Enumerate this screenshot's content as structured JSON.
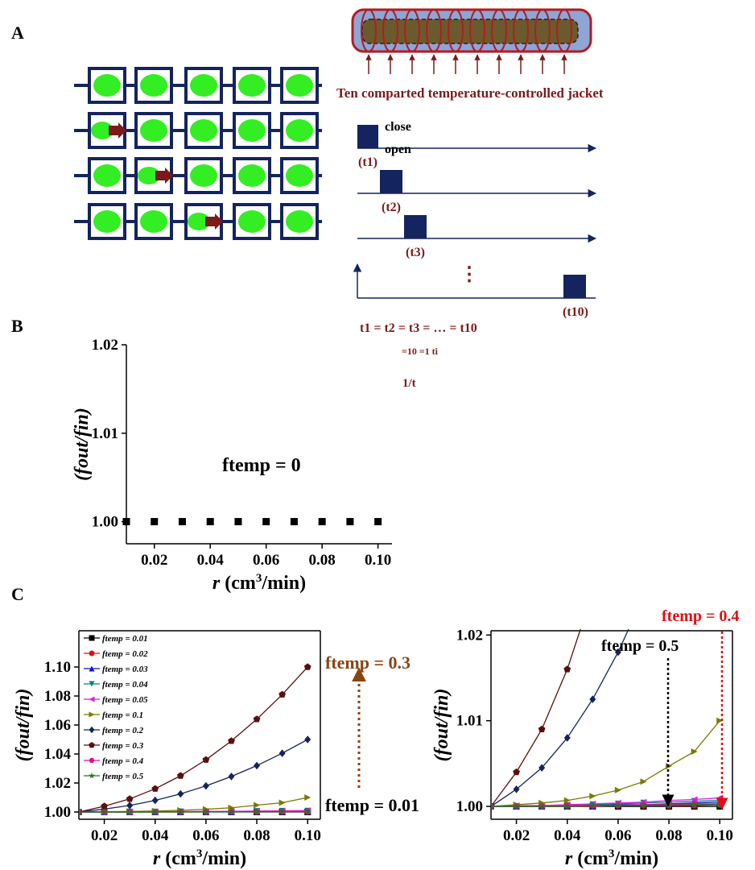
{
  "panels": {
    "a": "A",
    "b": "B",
    "c": "C"
  },
  "schematic": {
    "jacket_caption": "Ten comparted temperature-controlled jacket",
    "close_label": "close",
    "open_label": "open",
    "pulse_labels": [
      "(t1)",
      "(t2)",
      "(t3)",
      "(t10)"
    ],
    "equation": "t1 = t2 = t3 = … = t10",
    "sum_formula": "=10 =1 ti",
    "inverse": "1/t",
    "dots": "⋮"
  },
  "colors": {
    "green": "#33ee22",
    "navy": "#13245e",
    "dark_red": "#7a1a1a",
    "brown": "#8b4513",
    "red": "#e01010"
  },
  "chart_data": [
    {
      "id": "B",
      "type": "scatter",
      "x": [
        0.01,
        0.02,
        0.03,
        0.04,
        0.05,
        0.06,
        0.07,
        0.08,
        0.09,
        0.1
      ],
      "y": [
        1.0,
        1.0,
        1.0,
        1.0,
        1.0,
        1.0,
        1.0,
        1.0,
        1.0,
        1.0
      ],
      "xlim": [
        0.01,
        0.105
      ],
      "ylim": [
        0.9975,
        1.02
      ],
      "xticks": [
        "0.02",
        "0.04",
        "0.06",
        "0.08",
        "0.10"
      ],
      "yticks": [
        "1.00",
        "1.01",
        "1.02"
      ],
      "xlabel": "r (cm3/min)",
      "ylabel": "(fout/fin)",
      "annotation": "ftemp = 0"
    },
    {
      "id": "C-left",
      "type": "line",
      "x": [
        0.01,
        0.02,
        0.03,
        0.04,
        0.05,
        0.06,
        0.07,
        0.08,
        0.09,
        0.1
      ],
      "xlim": [
        0.01,
        0.105
      ],
      "ylim": [
        0.995,
        1.125
      ],
      "xticks": [
        "0.02",
        "0.04",
        "0.06",
        "0.08",
        "0.10"
      ],
      "yticks": [
        "1.00",
        "1.02",
        "1.04",
        "1.06",
        "1.08",
        "1.10"
      ],
      "xlabel": "r (cm3/min)",
      "ylabel": "(fout/fin)",
      "legend_position": "top-left",
      "annotations": [
        "ftemp = 0.3",
        "ftemp = 0.01"
      ],
      "series": [
        {
          "name": "ftemp = 0.01",
          "color": "#000000",
          "marker": "square",
          "values": [
            1.0,
            1.0,
            1.0,
            1.0,
            1.0,
            1.0,
            1.0,
            1.0,
            1.0,
            1.0
          ]
        },
        {
          "name": "ftemp = 0.02",
          "color": "#e01010",
          "marker": "circle",
          "values": [
            1.0,
            1.0,
            1.0,
            1.0,
            1.0,
            1.0001,
            1.0001,
            1.0001,
            1.0001,
            1.0002
          ]
        },
        {
          "name": "ftemp = 0.03",
          "color": "#1010e0",
          "marker": "triangle-up",
          "values": [
            1.0,
            1.0,
            1.0,
            1.0001,
            1.0001,
            1.0002,
            1.0002,
            1.0003,
            1.0004,
            1.0005
          ]
        },
        {
          "name": "ftemp = 0.04",
          "color": "#008080",
          "marker": "triangle-down",
          "values": [
            1.0,
            1.0,
            1.0001,
            1.0001,
            1.0002,
            1.0003,
            1.0004,
            1.0005,
            1.0006,
            1.0007
          ]
        },
        {
          "name": "ftemp = 0.05",
          "color": "#e020e0",
          "marker": "triangle-left",
          "values": [
            1.0,
            1.0001,
            1.0001,
            1.0002,
            1.0003,
            1.0004,
            1.0005,
            1.0007,
            1.0008,
            1.001
          ]
        },
        {
          "name": "ftemp = 0.1",
          "color": "#7a7a00",
          "marker": "triangle-right",
          "values": [
            1.0,
            1.0002,
            1.0004,
            1.0007,
            1.0012,
            1.0019,
            1.0029,
            1.0047,
            1.0064,
            1.01
          ]
        },
        {
          "name": "ftemp = 0.2",
          "color": "#13245e",
          "marker": "diamond",
          "values": [
            1.0,
            1.002,
            1.0045,
            1.008,
            1.0125,
            1.018,
            1.0245,
            1.032,
            1.0405,
            1.05
          ]
        },
        {
          "name": "ftemp = 0.3",
          "color": "#5a0f0f",
          "marker": "pentagon",
          "values": [
            1.0,
            1.004,
            1.009,
            1.016,
            1.025,
            1.036,
            1.049,
            1.064,
            1.081,
            1.1
          ]
        },
        {
          "name": "ftemp = 0.4",
          "color": "#e0108a",
          "marker": "hexagon",
          "values": [
            1.0,
            1.0,
            1.0,
            1.0001,
            1.0001,
            1.0001,
            1.0002,
            1.0002,
            1.0003,
            1.0003
          ]
        },
        {
          "name": "ftemp = 0.5",
          "color": "#1a7a1a",
          "marker": "star",
          "values": [
            1.0,
            1.0,
            1.0,
            1.0,
            1.0001,
            1.0001,
            1.0001,
            1.0001,
            1.0002,
            1.0002
          ]
        }
      ]
    },
    {
      "id": "C-right",
      "type": "line",
      "x": [
        0.01,
        0.02,
        0.03,
        0.04,
        0.05,
        0.06,
        0.07,
        0.08,
        0.09,
        0.1
      ],
      "xlim": [
        0.01,
        0.105
      ],
      "ylim": [
        0.9985,
        1.0205
      ],
      "xticks": [
        "0.02",
        "0.04",
        "0.06",
        "0.08",
        "0.10"
      ],
      "yticks": [
        "1.00",
        "1.01",
        "1.02"
      ],
      "xlabel": "r (cm3/min)",
      "ylabel": "(fout/fin)",
      "annotations": [
        "ftemp = 0.4",
        "ftemp = 0.5"
      ],
      "series_ref": "same as C-left"
    }
  ]
}
